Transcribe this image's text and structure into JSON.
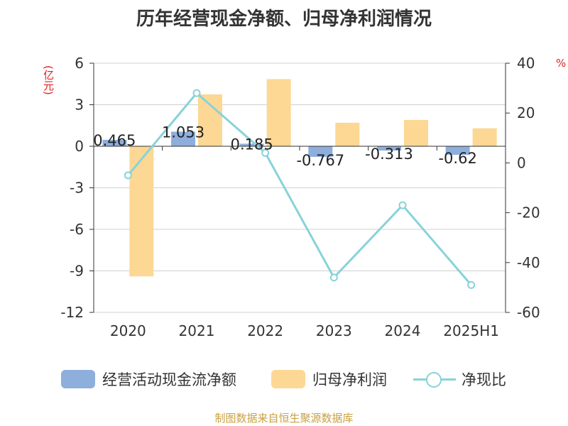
{
  "title": "历年经营现金净额、归母净利润情况",
  "unit_left": "(亿元)",
  "unit_right": "%",
  "source": "制图数据来自恒生聚源数据库",
  "colors": {
    "cash_flow": "#8eaedc",
    "net_profit": "#fdd794",
    "ratio": "#87d3d9",
    "title": "#333333",
    "unit": "#e02020",
    "source": "#c8a040"
  },
  "legend": {
    "cash_flow": "经营活动现金流净额",
    "net_profit": "归母净利润",
    "ratio": "净现比"
  },
  "chart_data": {
    "type": "bar",
    "title": "历年经营现金净额、归母净利润情况",
    "categories": [
      "2020",
      "2021",
      "2022",
      "2023",
      "2024",
      "2025H1"
    ],
    "left_axis": {
      "unit": "(亿元)",
      "ylim": [
        -12,
        6
      ],
      "ticks": [
        6,
        3,
        0,
        -3,
        -6,
        -9,
        -12
      ]
    },
    "right_axis": {
      "unit": "%",
      "ylim": [
        -60,
        40
      ],
      "ticks": [
        40,
        20,
        0,
        -20,
        -40,
        -60
      ]
    },
    "grid": true,
    "legend_position": "bottom",
    "series": [
      {
        "name": "经营活动现金流净额",
        "type": "bar",
        "axis": "left",
        "values": [
          0.465,
          1.053,
          0.185,
          -0.767,
          -0.313,
          -0.62
        ],
        "labels": [
          "0.465",
          "1.053",
          "0.185",
          "-0.767",
          "-0.313",
          "-0.62"
        ]
      },
      {
        "name": "归母净利润",
        "type": "bar",
        "axis": "left",
        "values": [
          -9.4,
          3.75,
          4.85,
          1.7,
          1.9,
          1.3
        ]
      },
      {
        "name": "净现比",
        "type": "line",
        "axis": "right",
        "values": [
          -5,
          28,
          4,
          -46,
          -17,
          -49
        ]
      }
    ]
  }
}
